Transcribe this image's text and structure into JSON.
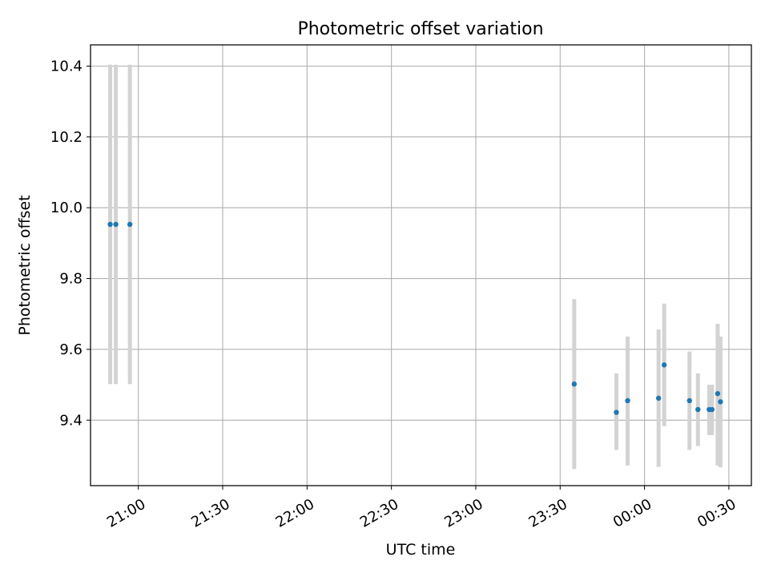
{
  "chart_data": {
    "type": "scatter",
    "title": "Photometric offset variation",
    "xlabel": "UTC time",
    "ylabel": "Photometric offset",
    "x_axis": {
      "kind": "time",
      "range": [
        "20:43",
        "00:38"
      ],
      "ticks": [
        "21:00",
        "21:30",
        "22:00",
        "22:30",
        "23:00",
        "23:30",
        "00:00",
        "00:30"
      ],
      "tick_rotation_deg": 30
    },
    "y_axis": {
      "range": [
        9.215,
        10.46
      ],
      "ticks": [
        9.4,
        9.6,
        9.8,
        10.0,
        10.2,
        10.4
      ],
      "tick_labels": [
        "9.4",
        "9.6",
        "9.8",
        "10.0",
        "10.2",
        "10.4"
      ]
    },
    "grid": true,
    "marker_color": "#1f77b4",
    "errorbar_color": "#d3d3d3",
    "points": [
      {
        "t": "20:50",
        "y": 9.953,
        "lo": 9.502,
        "hi": 10.404
      },
      {
        "t": "20:52",
        "y": 9.953,
        "lo": 9.502,
        "hi": 10.404
      },
      {
        "t": "20:57",
        "y": 9.953,
        "lo": 9.502,
        "hi": 10.404
      },
      {
        "t": "23:35",
        "y": 9.502,
        "lo": 9.262,
        "hi": 9.742
      },
      {
        "t": "23:50",
        "y": 9.422,
        "lo": 9.316,
        "hi": 9.532
      },
      {
        "t": "23:54",
        "y": 9.455,
        "lo": 9.272,
        "hi": 9.636
      },
      {
        "t": "00:05",
        "y": 9.462,
        "lo": 9.268,
        "hi": 9.656
      },
      {
        "t": "00:07",
        "y": 9.556,
        "lo": 9.383,
        "hi": 9.729
      },
      {
        "t": "00:16",
        "y": 9.455,
        "lo": 9.316,
        "hi": 9.594
      },
      {
        "t": "00:19",
        "y": 9.43,
        "lo": 9.327,
        "hi": 9.532
      },
      {
        "t": "00:23",
        "y": 9.43,
        "lo": 9.358,
        "hi": 9.5
      },
      {
        "t": "00:24",
        "y": 9.43,
        "lo": 9.358,
        "hi": 9.5
      },
      {
        "t": "00:26",
        "y": 9.475,
        "lo": 9.272,
        "hi": 9.672
      },
      {
        "t": "00:27",
        "y": 9.452,
        "lo": 9.267,
        "hi": 9.636
      }
    ]
  }
}
